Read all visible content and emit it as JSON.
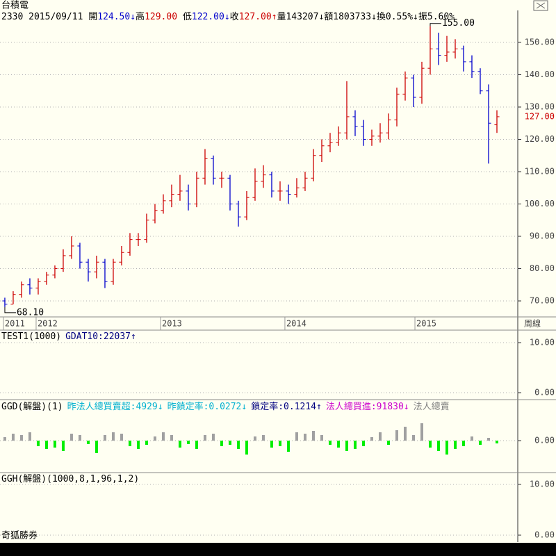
{
  "chart_data": [
    {
      "type": "ohlc",
      "title": "台積電",
      "period": "周線",
      "info": [
        {
          "text": "2330 2015/09/11 ",
          "color": "#000000"
        },
        {
          "text": "開",
          "color": "#000000"
        },
        {
          "text": "124.50↓",
          "color": "#0000cc"
        },
        {
          "text": "高",
          "color": "#000000"
        },
        {
          "text": "129.00 ",
          "color": "#cc0000"
        },
        {
          "text": "低",
          "color": "#000000"
        },
        {
          "text": "122.00↓",
          "color": "#0000cc"
        },
        {
          "text": "收",
          "color": "#000000"
        },
        {
          "text": "127.00↑",
          "color": "#cc0000"
        },
        {
          "text": "量143207↓",
          "color": "#000000"
        },
        {
          "text": "額1803733↓",
          "color": "#000000"
        },
        {
          "text": "換0.55%↓",
          "color": "#000000"
        },
        {
          "text": "振5.60%",
          "color": "#000000"
        }
      ],
      "open": [
        70,
        69,
        72,
        75,
        74,
        76,
        78,
        80,
        84,
        87,
        82,
        79,
        82,
        76,
        82,
        85,
        89,
        89,
        95,
        98,
        101,
        103,
        104,
        100,
        108,
        114,
        108,
        108,
        100,
        96,
        102,
        107,
        109,
        104,
        104,
        103,
        105,
        108,
        115,
        118,
        119,
        122,
        127,
        124,
        120,
        121,
        122,
        126,
        134,
        139,
        133,
        142,
        148,
        146,
        147,
        148,
        144,
        141,
        135,
        124.5
      ],
      "high": [
        71,
        73,
        76,
        77,
        77,
        79,
        81,
        86,
        90,
        88,
        83,
        84,
        83,
        83,
        87,
        91,
        91,
        97,
        100,
        103,
        106,
        109,
        106,
        110,
        117,
        115,
        110,
        109,
        101,
        104,
        111,
        112,
        110,
        107,
        106,
        108,
        110,
        117,
        120,
        122,
        124,
        138,
        129,
        126,
        123,
        125,
        128,
        136,
        141,
        140,
        144,
        155,
        153,
        152,
        151,
        149,
        146,
        142,
        137,
        129
      ],
      "low": [
        68.1,
        69,
        71,
        72,
        72,
        75,
        77,
        79,
        83,
        80,
        76,
        77,
        74,
        75,
        81,
        84,
        87,
        88,
        94,
        97,
        99,
        101,
        98,
        99,
        106,
        106,
        105,
        98,
        93,
        95,
        101,
        105,
        102,
        101,
        100,
        102,
        104,
        107,
        113,
        116,
        118,
        120,
        121,
        118,
        118,
        119,
        120,
        124,
        132,
        130,
        131,
        140,
        143,
        144,
        145,
        141,
        139,
        134,
        112.5,
        122
      ],
      "close": [
        69,
        72,
        75,
        74,
        76,
        78,
        80,
        84,
        87,
        82,
        79,
        82,
        76,
        82,
        85,
        89,
        89,
        95,
        98,
        101,
        103,
        104,
        100,
        108,
        114,
        108,
        108,
        100,
        96,
        102,
        107,
        109,
        104,
        104,
        103,
        105,
        108,
        115,
        118,
        119,
        122,
        127,
        124,
        120,
        121,
        122,
        126,
        134,
        139,
        133,
        142,
        148,
        146,
        147,
        148,
        144,
        141,
        135,
        125,
        127
      ],
      "color_up": "#cc0000",
      "color_down": "#0000cc",
      "xlim": [
        -0.58,
        61.5
      ],
      "xticks": [
        {
          "value": -0.17,
          "label": "2011"
        },
        {
          "value": 3.75,
          "label": "2012"
        },
        {
          "value": 18.67,
          "label": "2013"
        },
        {
          "value": 33.58,
          "label": "2014"
        },
        {
          "value": 49.17,
          "label": "2015"
        }
      ],
      "ylim": [
        65.27,
        159.89
      ],
      "yticks": [
        {
          "value": 70,
          "label": "70.00"
        },
        {
          "value": 80,
          "label": "80.00"
        },
        {
          "value": 90,
          "label": "90.00"
        },
        {
          "value": 100,
          "label": "100.00"
        },
        {
          "value": 110,
          "label": "110.00"
        },
        {
          "value": 120,
          "label": "120.00"
        },
        {
          "value": 130,
          "label": "130.00"
        },
        {
          "value": 140,
          "label": "140.00"
        },
        {
          "value": 150,
          "label": "150.00"
        }
      ],
      "grid": true,
      "annotations": [
        {
          "text": "155.00",
          "x": 51,
          "y": 155
        },
        {
          "text": "68.10",
          "x": 0,
          "y": 68.1
        }
      ],
      "last_label": {
        "value": 127,
        "label": "127.00",
        "color": "#cc0000"
      }
    },
    {
      "type": "indicator",
      "title": "TEST1(1000)",
      "legend": [
        {
          "text": "GDAT10:22037↑",
          "color": "#000080"
        }
      ],
      "ylim": [
        -1.39,
        12.5
      ],
      "yticks": [
        {
          "value": 0,
          "label": "0.00"
        },
        {
          "value": 10,
          "label": "10.00"
        }
      ],
      "grid": true
    },
    {
      "type": "bar",
      "title": "GGD(解盤)(1)",
      "legend": [
        {
          "text": "昨法人總買賣超:4929↓",
          "color": "#00b0d0"
        },
        {
          "text": "昨鎖定率:0.0272↓",
          "color": "#00b0d0"
        },
        {
          "text": "鎖定率:0.1214↑",
          "color": "#000080"
        },
        {
          "text": "法人總買進:91830↓",
          "color": "#cc00cc"
        },
        {
          "text": "法人總賣",
          "color": "#808080"
        }
      ],
      "values": [
        5,
        10,
        8,
        12,
        -8,
        -12,
        -10,
        -15,
        10,
        8,
        -5,
        -18,
        8,
        12,
        10,
        -8,
        -12,
        -6,
        6,
        12,
        8,
        -10,
        -5,
        -12,
        8,
        10,
        -8,
        -6,
        -12,
        -20,
        6,
        8,
        -10,
        -8,
        -16,
        12,
        10,
        14,
        8,
        -6,
        -10,
        -15,
        -12,
        -8,
        5,
        12,
        -6,
        15,
        20,
        8,
        25,
        -10,
        -15,
        -20,
        -12,
        -8,
        6,
        -6,
        4,
        -4
      ],
      "pos_color": "#a0a0a0",
      "neg_color": "#00ee00",
      "ylim": [
        -46,
        59
      ],
      "yticks": [
        {
          "value": 0,
          "label": "0.00"
        }
      ],
      "grid": true
    },
    {
      "type": "indicator",
      "title": "GGH(解盤)(1000,8,1,96,1,2)",
      "legend": [],
      "ylim": [
        -1.37,
        12.33
      ],
      "yticks": [
        {
          "value": 0,
          "label": "0.00"
        },
        {
          "value": 10,
          "label": "10.00"
        }
      ],
      "grid": true
    }
  ],
  "footer": "奇狐勝券"
}
